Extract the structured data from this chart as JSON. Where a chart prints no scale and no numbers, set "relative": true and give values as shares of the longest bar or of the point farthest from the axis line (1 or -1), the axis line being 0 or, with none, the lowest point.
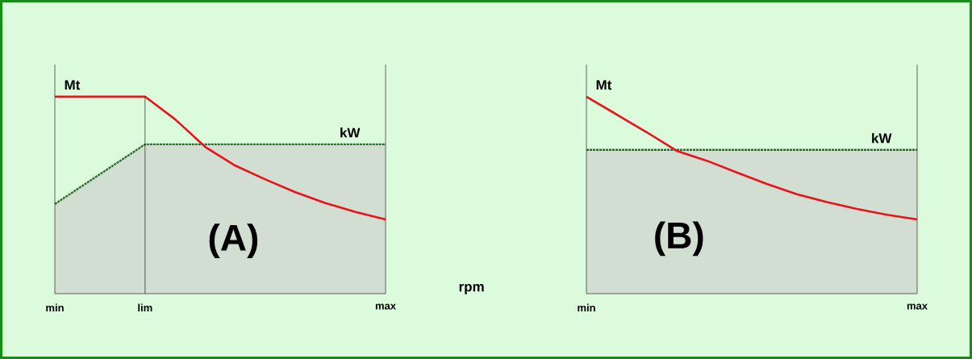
{
  "chart_data": [
    {
      "type": "line",
      "relative": true,
      "categories": [
        "min",
        null,
        null,
        "lim",
        null,
        null,
        null,
        null,
        null,
        null,
        null,
        "max"
      ],
      "xlabel": "rpm",
      "legend": false,
      "series": [
        {
          "name": "Mt",
          "color": "#e8141c",
          "values": [
            1,
            1,
            1,
            1,
            0.885,
            0.745,
            0.65,
            0.58,
            0.515,
            0.46,
            0.415,
            0.377
          ]
        },
        {
          "name": "kW",
          "type": "area",
          "color": "#2e6b2e",
          "line_style": "dashed",
          "values": [
            0.455,
            0.556,
            0.657,
            0.758,
            0.758,
            0.758,
            0.758,
            0.758,
            0.758,
            0.758,
            0.758,
            0.758
          ]
        }
      ],
      "ref_lines": [
        {
          "axis": "x",
          "value": "lim"
        }
      ],
      "annotations": [
        "(A)"
      ]
    },
    {
      "type": "line",
      "relative": true,
      "categories": [
        "min",
        null,
        null,
        null,
        null,
        null,
        null,
        null,
        null,
        null,
        null,
        "max"
      ],
      "legend": false,
      "series": [
        {
          "name": "Mt",
          "color": "#e8141c",
          "values": [
            1,
            0.91,
            0.82,
            0.725,
            0.675,
            0.615,
            0.557,
            0.505,
            0.465,
            0.43,
            0.4,
            0.377
          ]
        },
        {
          "name": "kW",
          "type": "area",
          "color": "#2e6b2e",
          "line_style": "dashed",
          "values": [
            0.73,
            0.73,
            0.73,
            0.73,
            0.73,
            0.73,
            0.73,
            0.73,
            0.73,
            0.73,
            0.73,
            0.73
          ]
        }
      ],
      "annotations": [
        "(B)"
      ]
    }
  ]
}
